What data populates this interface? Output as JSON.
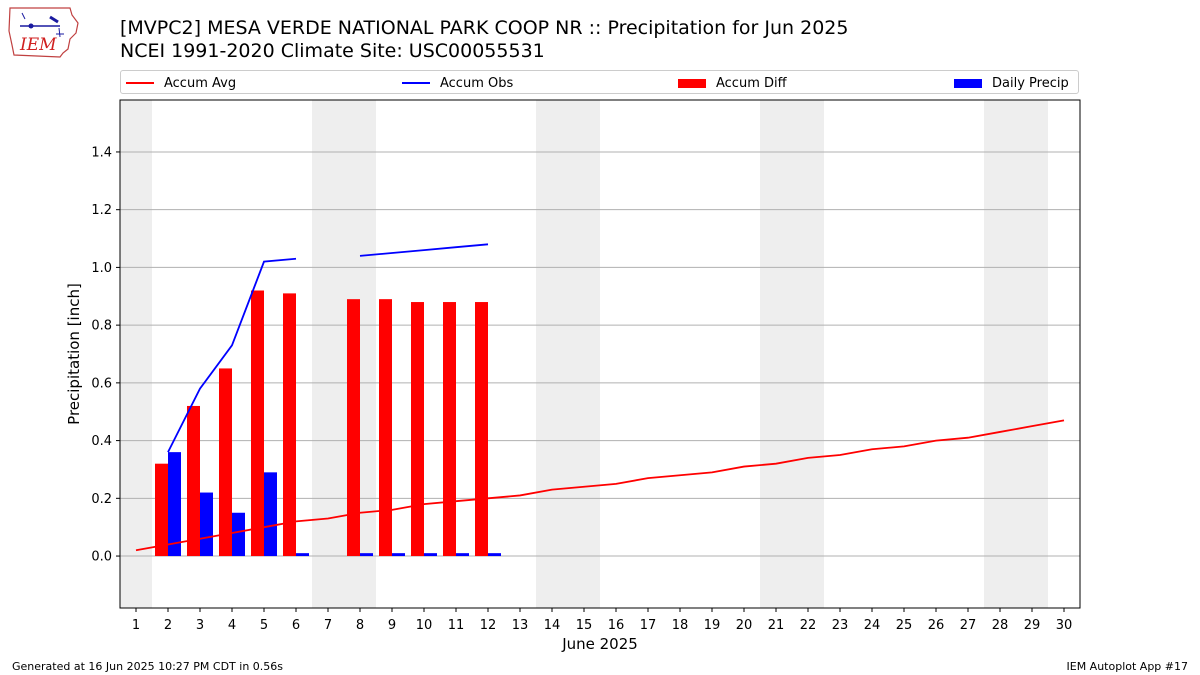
{
  "header": {
    "title_line1": "[MVPC2] MESA VERDE NATIONAL PARK COOP NR :: Precipitation for Jun 2025",
    "title_line2": "NCEI 1991-2020 Climate Site: USC00055531"
  },
  "logo": {
    "text": "IEM",
    "icon": "iem-iowa-logo-icon"
  },
  "colors": {
    "avg": "#ff0000",
    "obs": "#0000ff",
    "diff": "#ff0000",
    "daily": "#0000ff",
    "weekend": "#eeeeee",
    "grid": "#b0b0b0"
  },
  "chart_data": {
    "type": "bar",
    "xlabel": "June 2025",
    "ylabel": "Precipitation [inch]",
    "ylim": [
      -0.18,
      1.58
    ],
    "yticks": [
      0.0,
      0.2,
      0.4,
      0.6,
      0.8,
      1.0,
      1.2,
      1.4
    ],
    "ytick_labels": [
      "0.0",
      "0.2",
      "0.4",
      "0.6",
      "0.8",
      "1.0",
      "1.2",
      "1.4"
    ],
    "xlim": [
      0.5,
      30.5
    ],
    "days": [
      1,
      2,
      3,
      4,
      5,
      6,
      7,
      8,
      9,
      10,
      11,
      12,
      13,
      14,
      15,
      16,
      17,
      18,
      19,
      20,
      21,
      22,
      23,
      24,
      25,
      26,
      27,
      28,
      29,
      30
    ],
    "weekend_days": [
      1,
      7,
      8,
      14,
      15,
      21,
      22,
      28,
      29
    ],
    "grid": true,
    "legend_position": "top",
    "legend": [
      "Accum Avg",
      "Accum Obs",
      "Accum Diff",
      "Daily Precip"
    ],
    "series": [
      {
        "name": "Accum Avg",
        "kind": "line",
        "x": [
          1,
          2,
          3,
          4,
          5,
          6,
          7,
          8,
          9,
          10,
          11,
          12,
          13,
          14,
          15,
          16,
          17,
          18,
          19,
          20,
          21,
          22,
          23,
          24,
          25,
          26,
          27,
          28,
          29,
          30
        ],
        "values": [
          0.02,
          0.04,
          0.06,
          0.08,
          0.1,
          0.12,
          0.13,
          0.15,
          0.16,
          0.18,
          0.19,
          0.2,
          0.21,
          0.23,
          0.24,
          0.25,
          0.27,
          0.28,
          0.29,
          0.31,
          0.32,
          0.34,
          0.35,
          0.37,
          0.38,
          0.4,
          0.41,
          0.43,
          0.45,
          0.47
        ]
      },
      {
        "name": "Accum Obs",
        "kind": "line",
        "segments": [
          {
            "x": [
              2,
              3,
              4,
              5,
              6
            ],
            "values": [
              0.36,
              0.58,
              0.73,
              1.02,
              1.03
            ]
          },
          {
            "x": [
              8,
              9,
              10,
              11,
              12
            ],
            "values": [
              1.04,
              1.05,
              1.06,
              1.07,
              1.08
            ]
          }
        ]
      },
      {
        "name": "Accum Diff",
        "kind": "bar",
        "x": [
          2,
          3,
          4,
          5,
          6,
          8,
          9,
          10,
          11,
          12
        ],
        "values": [
          0.32,
          0.52,
          0.65,
          0.92,
          0.91,
          0.89,
          0.89,
          0.88,
          0.88,
          0.88
        ]
      },
      {
        "name": "Daily Precip",
        "kind": "bar",
        "x": [
          2,
          3,
          4,
          5,
          6,
          8,
          9,
          10,
          11,
          12
        ],
        "values": [
          0.36,
          0.22,
          0.15,
          0.29,
          0.01,
          0.01,
          0.01,
          0.01,
          0.01,
          0.01
        ]
      }
    ]
  },
  "footer": {
    "left": "Generated at 16 Jun 2025 10:27 PM CDT in 0.56s",
    "right": "IEM Autoplot App #17"
  }
}
